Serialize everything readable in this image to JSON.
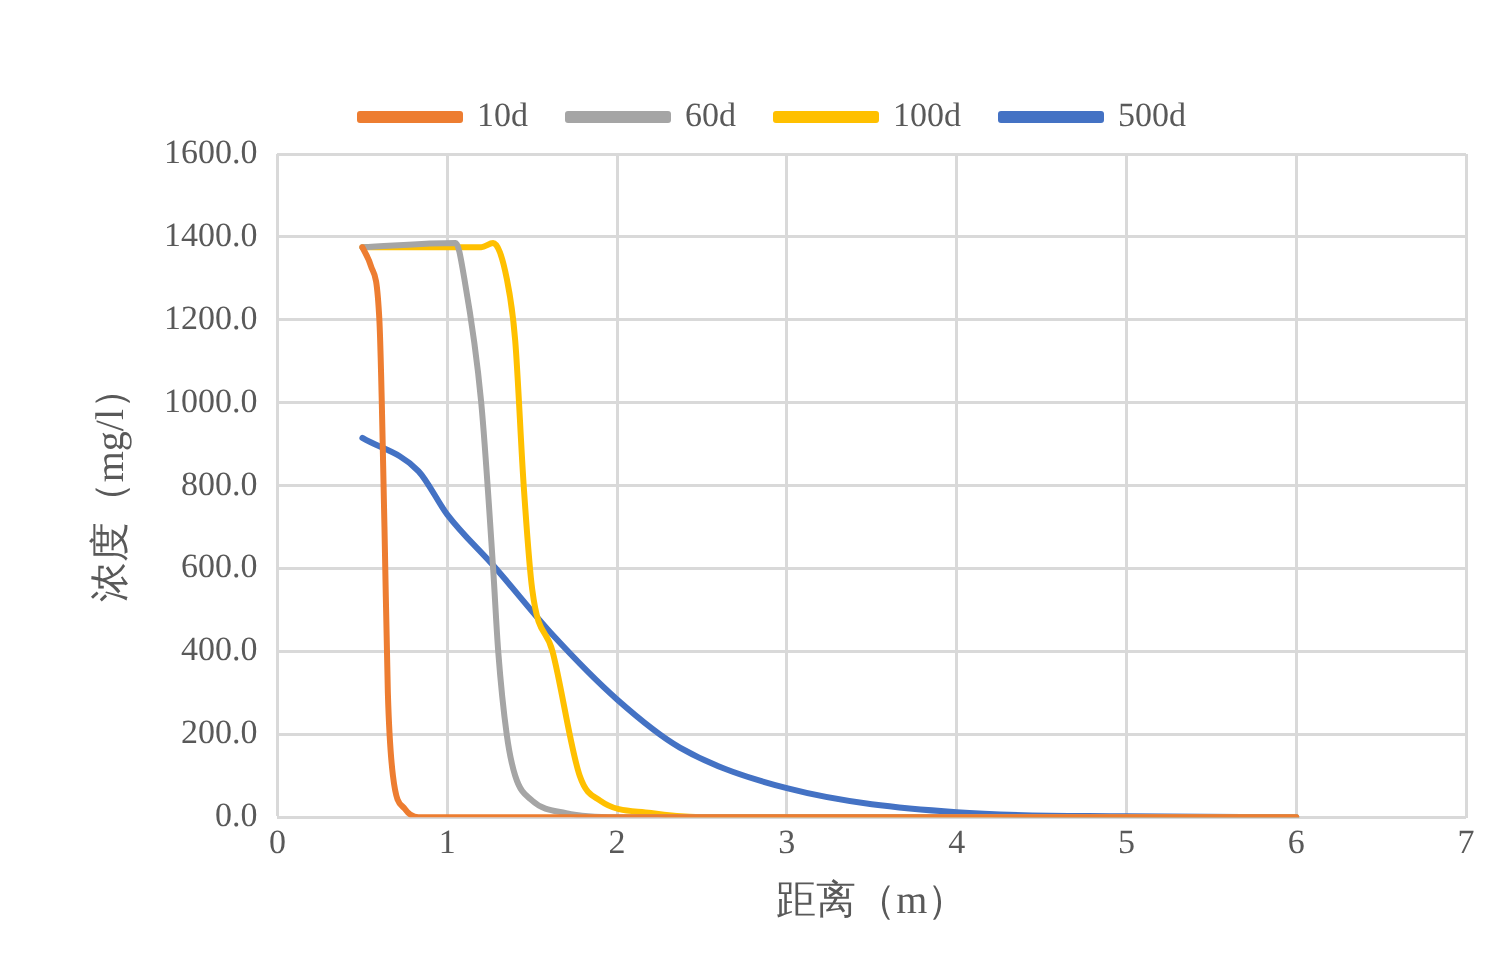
{
  "chart_data": {
    "type": "line",
    "xlabel": "距离（m）",
    "ylabel": "浓度（mg/l）",
    "xlim": [
      0,
      7
    ],
    "xticks": [
      0,
      1,
      2,
      3,
      4,
      5,
      6,
      7
    ],
    "ylim": [
      0,
      1600
    ],
    "yticks": [
      {
        "value": 0,
        "label": "0.0"
      },
      {
        "value": 200,
        "label": "200.0"
      },
      {
        "value": 400,
        "label": "400.0"
      },
      {
        "value": 600,
        "label": "600.0"
      },
      {
        "value": 800,
        "label": "800.0"
      },
      {
        "value": 1000,
        "label": "1000.0"
      },
      {
        "value": 1200,
        "label": "1200.0"
      },
      {
        "value": 1400,
        "label": "1400.0"
      },
      {
        "value": 1600,
        "label": "1600.0"
      }
    ],
    "grid": true,
    "legend": "top",
    "marker": "none",
    "line_style": "solid",
    "series": [
      {
        "name": "10d",
        "color": "#ed7d31",
        "x": [
          0.5,
          0.55,
          0.6,
          0.63,
          0.65,
          0.68,
          0.75,
          0.83,
          6
        ],
        "values": [
          1375,
          1330,
          1200,
          700,
          300,
          100,
          20,
          0,
          0
        ]
      },
      {
        "name": "60d",
        "color": "#a5a5a5",
        "x": [
          0.5,
          1.05,
          1.1,
          1.2,
          1.27,
          1.3,
          1.35,
          1.4,
          1.5,
          1.7,
          2,
          6
        ],
        "values": [
          1375,
          1385,
          1300,
          1000,
          600,
          400,
          200,
          100,
          40,
          10,
          0,
          0
        ]
      },
      {
        "name": "100d",
        "color": "#ffc000",
        "x": [
          0.5,
          1.2,
          1.27,
          1.35,
          1.4,
          1.45,
          1.5,
          1.62,
          1.78,
          1.9,
          2.2,
          2.5,
          6
        ],
        "values": [
          1375,
          1375,
          1385,
          1300,
          1150,
          800,
          550,
          400,
          100,
          40,
          10,
          0,
          0
        ]
      },
      {
        "name": "500d",
        "color": "#4472c4",
        "x": [
          0.5,
          0.83,
          1,
          1.28,
          1.62,
          2,
          2.37,
          3,
          4,
          5,
          6
        ],
        "values": [
          915,
          835,
          730,
          603,
          440,
          284,
          168,
          70,
          12,
          2,
          0
        ]
      }
    ]
  }
}
